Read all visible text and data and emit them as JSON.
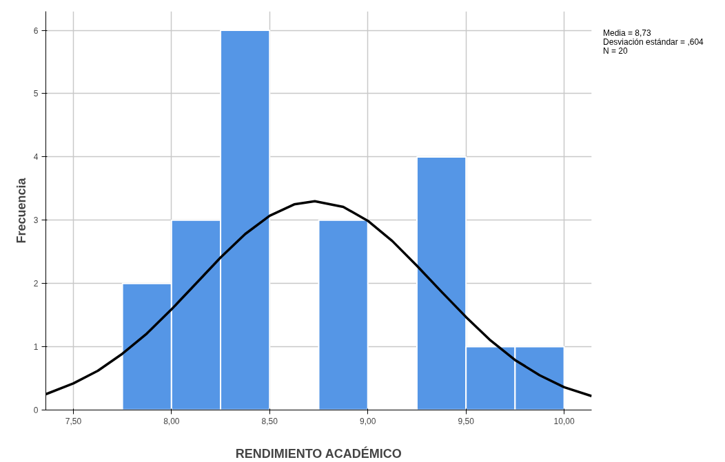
{
  "chart_data": {
    "type": "histogram",
    "xlabel": "RENDIMIENTO ACADÉMICO",
    "ylabel": "Frecuencia",
    "annotations": [
      "Media = 8,73",
      "Desviación estándar = ,604",
      "N = 20"
    ],
    "series": [
      {
        "type": "histogram",
        "bins": [
          7.75,
          8.0,
          8.25,
          8.5,
          8.75,
          9.0,
          9.25,
          9.5,
          9.75,
          10.0
        ],
        "values": [
          2,
          3,
          6,
          0,
          3,
          0,
          4,
          1,
          1
        ],
        "color": "#5596e6"
      },
      {
        "type": "line",
        "color": "#000000",
        "x": [
          7.36,
          7.5,
          7.625,
          7.75,
          7.875,
          8.0,
          8.125,
          8.25,
          8.375,
          8.5,
          8.625,
          8.73,
          8.875,
          9.0,
          9.125,
          9.25,
          9.375,
          9.5,
          9.625,
          9.75,
          9.875,
          10.0,
          10.14
        ],
        "values": [
          0.25,
          0.42,
          0.62,
          0.89,
          1.21,
          1.59,
          2.0,
          2.41,
          2.78,
          3.07,
          3.25,
          3.3,
          3.21,
          2.99,
          2.67,
          2.28,
          1.87,
          1.47,
          1.1,
          0.79,
          0.55,
          0.36,
          0.22
        ]
      }
    ],
    "xlim": [
      7.36,
      10.14
    ],
    "xticks": [
      {
        "value": 7.5,
        "label": "7,50"
      },
      {
        "value": 8.0,
        "label": "8,00"
      },
      {
        "value": 8.5,
        "label": "8,50"
      },
      {
        "value": 9.0,
        "label": "9,00"
      },
      {
        "value": 9.5,
        "label": "9,50"
      },
      {
        "value": 10.0,
        "label": "10,00"
      }
    ],
    "ylim": [
      0,
      6.3
    ],
    "yticks": [
      0,
      1,
      2,
      3,
      4,
      5,
      6
    ],
    "grid": true
  }
}
